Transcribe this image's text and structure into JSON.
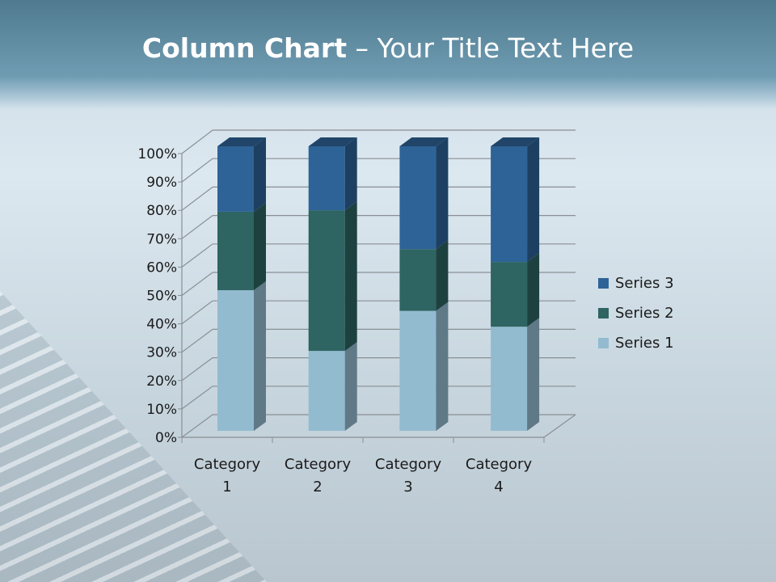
{
  "title": {
    "bold": "Column Chart",
    "rest": " – Your Title Text Here"
  },
  "chart_data": {
    "type": "bar",
    "stacking": "percent",
    "three_d": true,
    "categories": [
      "Category 1",
      "Category 2",
      "Category 3",
      "Category 4"
    ],
    "series": [
      {
        "name": "Series 1",
        "values": [
          4.3,
          2.5,
          3.5,
          4.5
        ],
        "color": "#93bbd0"
      },
      {
        "name": "Series 2",
        "values": [
          2.4,
          4.4,
          1.8,
          2.8
        ],
        "color": "#2e6462"
      },
      {
        "name": "Series 3",
        "values": [
          2,
          2,
          3,
          5
        ],
        "color": "#2e6397"
      }
    ],
    "yticks": [
      "0%",
      "10%",
      "20%",
      "30%",
      "40%",
      "50%",
      "60%",
      "70%",
      "80%",
      "90%",
      "100%"
    ],
    "ylim": [
      0,
      100
    ],
    "grid": true,
    "legend": "right"
  }
}
